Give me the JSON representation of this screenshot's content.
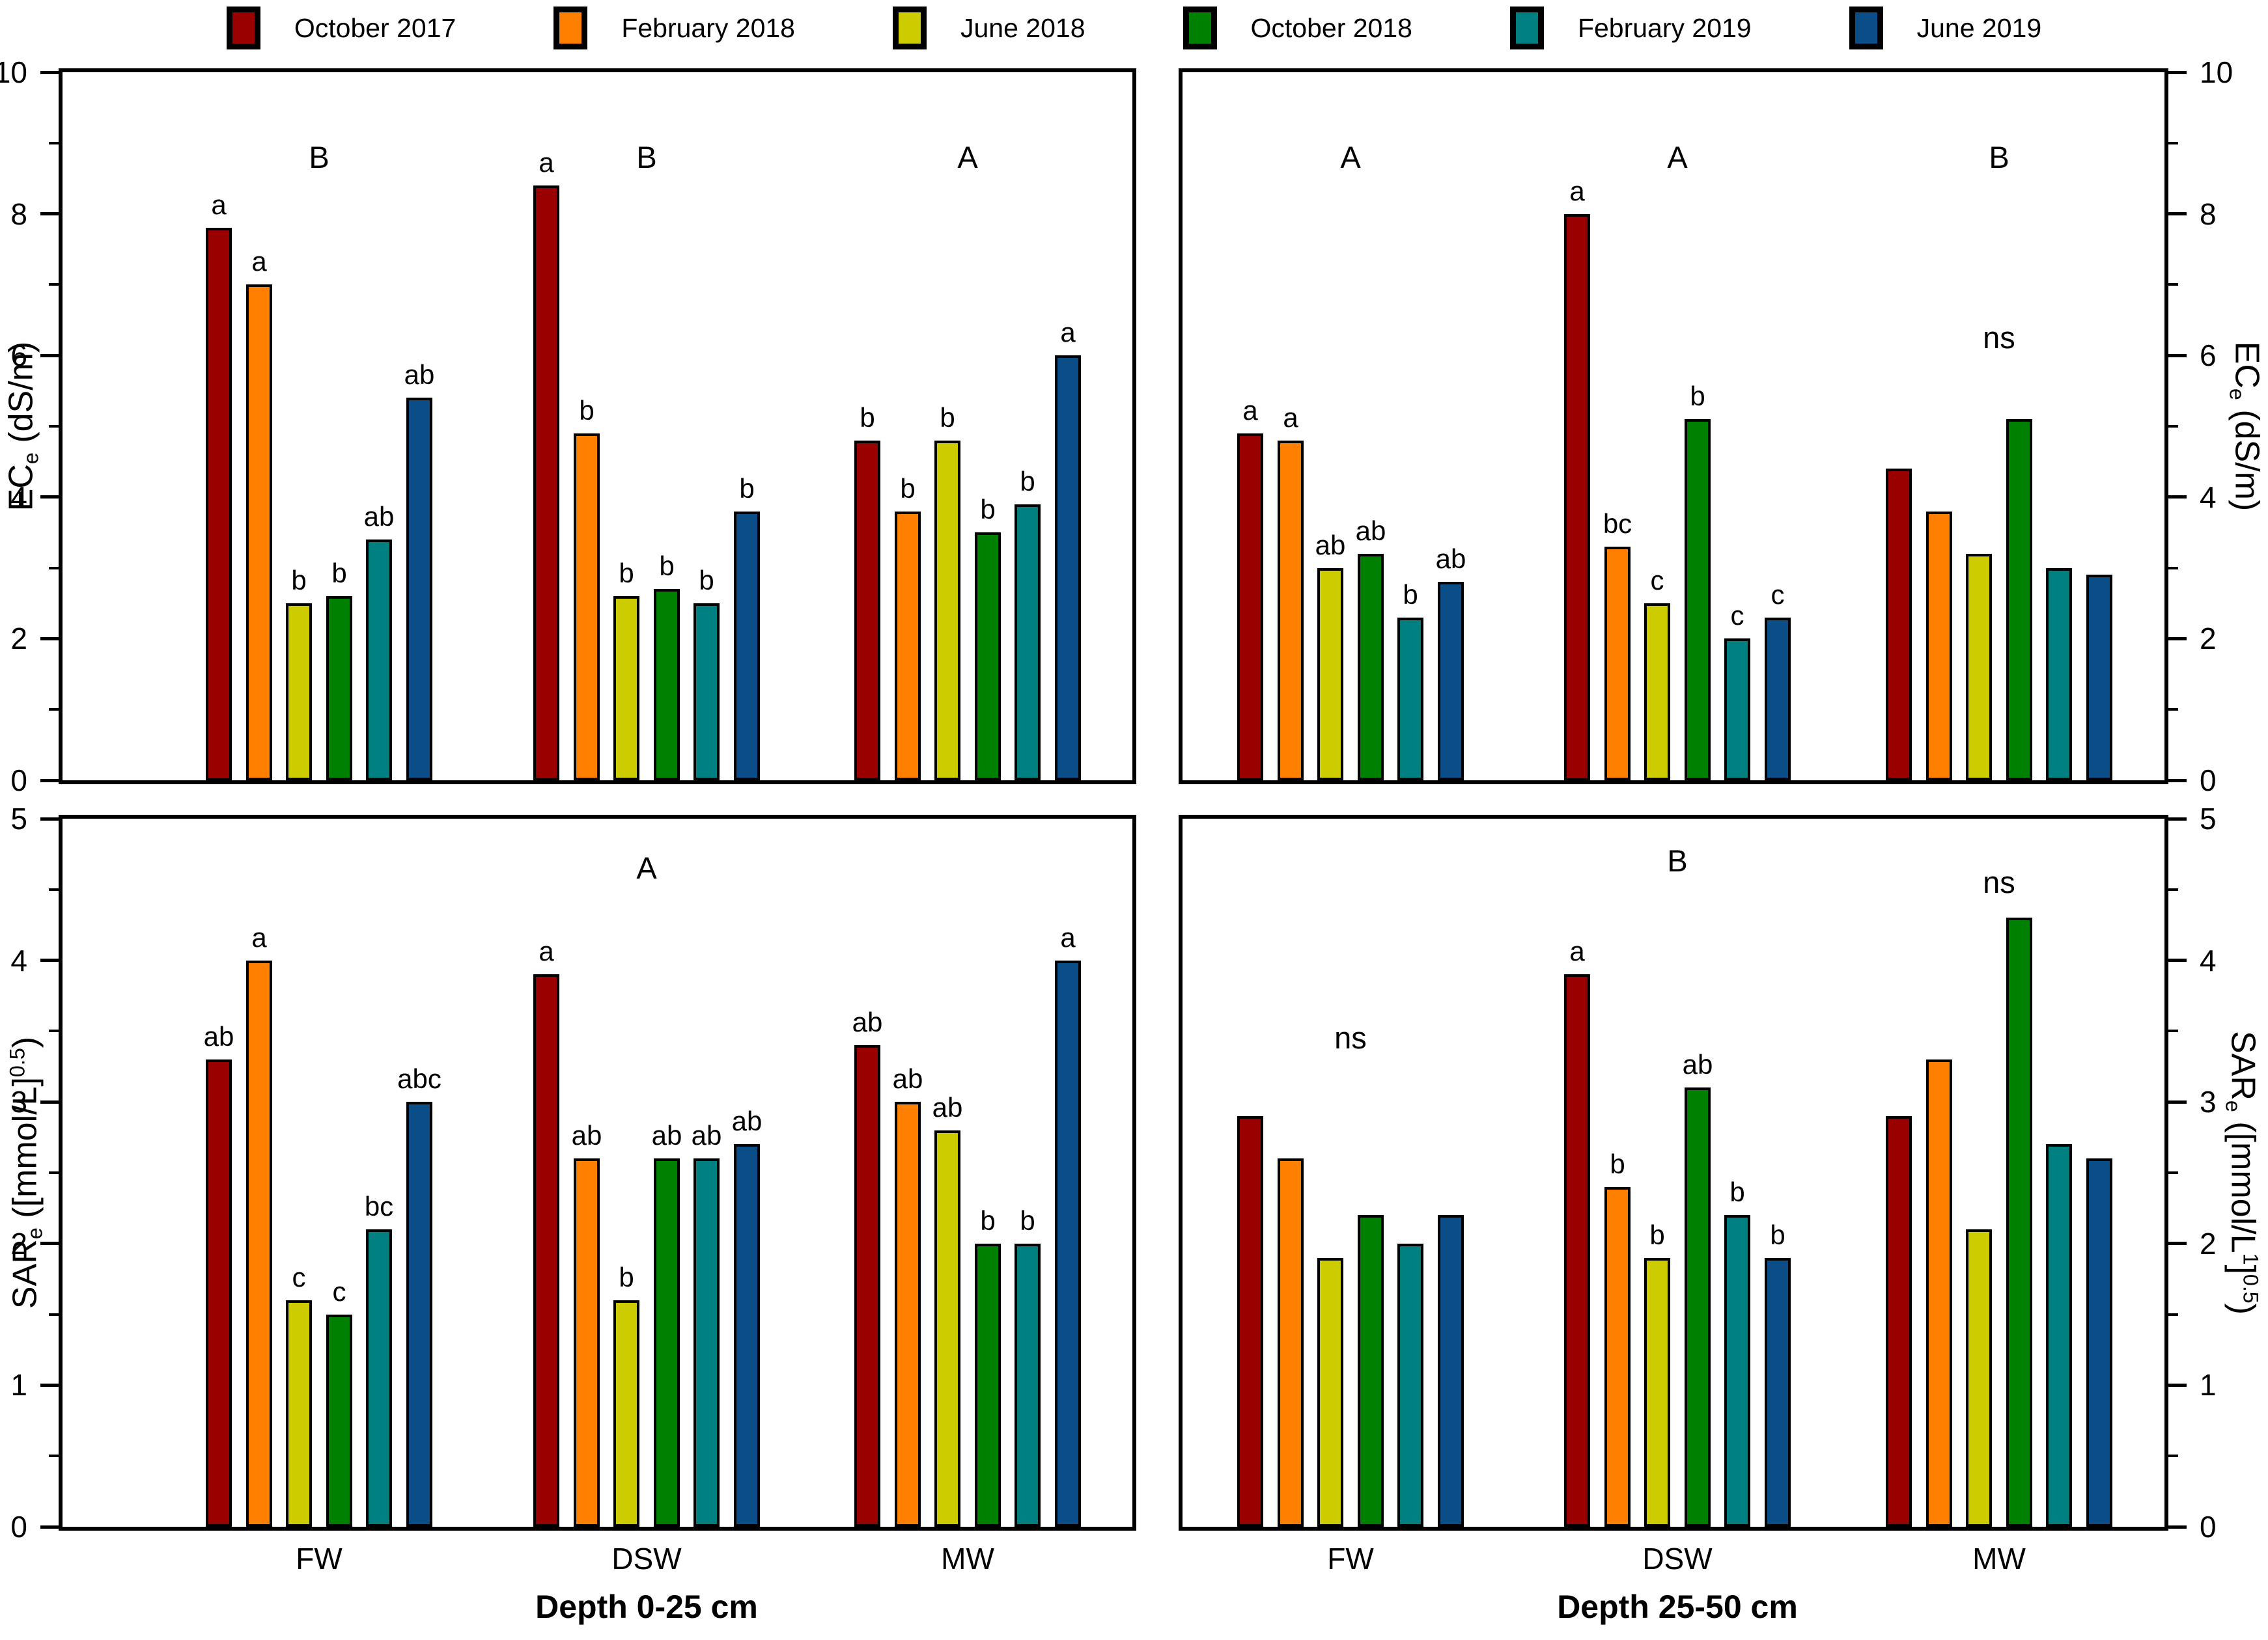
{
  "figure": {
    "background": "#ffffff",
    "depth_titles": {
      "left": "Depth 0-25 cm",
      "right": "Depth 25-50 cm"
    }
  },
  "legend": {
    "items": [
      {
        "label": "October 2017",
        "color": "#990000"
      },
      {
        "label": "February 2018",
        "color": "#FF8000"
      },
      {
        "label": "June 2018",
        "color": "#CCCC00"
      },
      {
        "label": "October 2018",
        "color": "#008000"
      },
      {
        "label": "February 2019",
        "color": "#008080"
      },
      {
        "label": "June 2019",
        "color": "#0A4D87"
      }
    ]
  },
  "chart_data": [
    {
      "type": "bar",
      "key": "ece-depth-0-25",
      "position": "top-left",
      "title": "ECe at depth 0-25 cm",
      "categories": [
        "FW",
        "DSW",
        "MW"
      ],
      "axis_side": "left",
      "ylabel_plain": "ECe (dS/m)",
      "ylabel_segments": [
        {
          "t": "EC"
        },
        {
          "t": "e",
          "s": "sub"
        },
        {
          "t": " (dS/m)"
        }
      ],
      "ylim": [
        0,
        10
      ],
      "yticks": [
        0,
        2,
        4,
        6,
        8,
        10
      ],
      "minor_yticks": [
        1,
        3,
        5,
        7,
        9
      ],
      "show_category_labels": false,
      "grid": false,
      "series": [
        {
          "name": "October 2017",
          "values": [
            7.8,
            8.4,
            4.8
          ],
          "letters": [
            "a",
            "a",
            "b"
          ]
        },
        {
          "name": "February 2018",
          "values": [
            7.0,
            4.9,
            3.8
          ],
          "letters": [
            "a",
            "b",
            "b"
          ]
        },
        {
          "name": "June 2018",
          "values": [
            2.5,
            2.6,
            4.8
          ],
          "letters": [
            "b",
            "b",
            "b"
          ]
        },
        {
          "name": "October 2018",
          "values": [
            2.6,
            2.7,
            3.5
          ],
          "letters": [
            "b",
            "b",
            "b"
          ]
        },
        {
          "name": "February 2019",
          "values": [
            3.4,
            2.5,
            3.9
          ],
          "letters": [
            "ab",
            "b",
            "b"
          ]
        },
        {
          "name": "June 2019",
          "values": [
            5.4,
            3.8,
            6.0
          ],
          "letters": [
            "ab",
            "b",
            "a"
          ]
        }
      ],
      "annotations": [
        {
          "group": 0,
          "text": "B",
          "y": 8.8
        },
        {
          "group": 1,
          "text": "B",
          "y": 8.8
        },
        {
          "group": 2,
          "text": "A",
          "y": 8.8
        }
      ]
    },
    {
      "type": "bar",
      "key": "ece-depth-25-50",
      "position": "top-right",
      "title": "ECe at depth 25-50 cm",
      "categories": [
        "FW",
        "DSW",
        "MW"
      ],
      "axis_side": "right",
      "ylabel_plain": "ECe (dS/m)",
      "ylabel_segments": [
        {
          "t": "EC"
        },
        {
          "t": "e",
          "s": "sub"
        },
        {
          "t": " (dS/m)"
        }
      ],
      "ylim": [
        0,
        10
      ],
      "yticks": [
        0,
        2,
        4,
        6,
        8,
        10
      ],
      "minor_yticks": [
        1,
        3,
        5,
        7,
        9
      ],
      "show_category_labels": false,
      "grid": false,
      "series": [
        {
          "name": "October 2017",
          "values": [
            4.9,
            8.0,
            4.4
          ],
          "letters": [
            "a",
            "a",
            ""
          ]
        },
        {
          "name": "February 2018",
          "values": [
            4.8,
            3.3,
            3.8
          ],
          "letters": [
            "a",
            "bc",
            ""
          ]
        },
        {
          "name": "June 2018",
          "values": [
            3.0,
            2.5,
            3.2
          ],
          "letters": [
            "ab",
            "c",
            ""
          ]
        },
        {
          "name": "October 2018",
          "values": [
            3.2,
            5.1,
            5.1
          ],
          "letters": [
            "ab",
            "b",
            ""
          ]
        },
        {
          "name": "February 2019",
          "values": [
            2.3,
            2.0,
            3.0
          ],
          "letters": [
            "b",
            "c",
            ""
          ]
        },
        {
          "name": "June 2019",
          "values": [
            2.8,
            2.3,
            2.9
          ],
          "letters": [
            "ab",
            "c",
            ""
          ]
        }
      ],
      "annotations": [
        {
          "group": 0,
          "text": "A",
          "y": 8.8
        },
        {
          "group": 1,
          "text": "A",
          "y": 8.8
        },
        {
          "group": 2,
          "text": "B",
          "y": 8.8
        },
        {
          "group": 2,
          "text": "ns",
          "y": 6.25
        }
      ]
    },
    {
      "type": "bar",
      "key": "sare-depth-0-25",
      "position": "bottom-left",
      "title": "SARe at depth 0-25 cm",
      "categories": [
        "FW",
        "DSW",
        "MW"
      ],
      "axis_side": "left",
      "ylabel_plain": "SARe ([mmol/L]0.5)",
      "ylabel_segments": [
        {
          "t": "SAR"
        },
        {
          "t": "e",
          "s": "sub"
        },
        {
          "t": " ([mmol/L]"
        },
        {
          "t": "0.5",
          "s": "sup"
        },
        {
          "t": ")"
        }
      ],
      "ylim": [
        0,
        5
      ],
      "yticks": [
        0,
        1,
        2,
        3,
        4,
        5
      ],
      "minor_yticks": [
        0.5,
        1.5,
        2.5,
        3.5,
        4.5
      ],
      "show_category_labels": true,
      "grid": false,
      "series": [
        {
          "name": "October 2017",
          "values": [
            3.3,
            3.9,
            3.4
          ],
          "letters": [
            "ab",
            "a",
            "ab"
          ]
        },
        {
          "name": "February 2018",
          "values": [
            4.0,
            2.6,
            3.0
          ],
          "letters": [
            "a",
            "ab",
            "ab"
          ]
        },
        {
          "name": "June 2018",
          "values": [
            1.6,
            1.6,
            2.8
          ],
          "letters": [
            "c",
            "b",
            "ab"
          ]
        },
        {
          "name": "October 2018",
          "values": [
            1.5,
            2.6,
            2.0
          ],
          "letters": [
            "c",
            "ab",
            "b"
          ]
        },
        {
          "name": "February 2019",
          "values": [
            2.1,
            2.6,
            2.0
          ],
          "letters": [
            "bc",
            "ab",
            "b"
          ]
        },
        {
          "name": "June 2019",
          "values": [
            3.0,
            2.7,
            4.0
          ],
          "letters": [
            "abc",
            "ab",
            "a"
          ]
        }
      ],
      "annotations": [
        {
          "group": 1,
          "text": "A",
          "y": 4.65
        }
      ]
    },
    {
      "type": "bar",
      "key": "sare-depth-25-50",
      "position": "bottom-right",
      "title": "SARe at depth 25-50 cm",
      "categories": [
        "FW",
        "DSW",
        "MW"
      ],
      "axis_side": "right",
      "ylabel_plain": "SARe ([mmol/L1]0.5)",
      "ylabel_segments": [
        {
          "t": "SAR"
        },
        {
          "t": "e",
          "s": "sub"
        },
        {
          "t": " ([mmol/L"
        },
        {
          "t": "1",
          "s": "sup"
        },
        {
          "t": "]"
        },
        {
          "t": "0.5",
          "s": "sup"
        },
        {
          "t": ")"
        }
      ],
      "ylim": [
        0,
        5
      ],
      "yticks": [
        0,
        1,
        2,
        3,
        4,
        5
      ],
      "minor_yticks": [
        0.5,
        1.5,
        2.5,
        3.5,
        4.5
      ],
      "show_category_labels": true,
      "grid": false,
      "series": [
        {
          "name": "October 2017",
          "values": [
            2.9,
            3.9,
            2.9
          ],
          "letters": [
            "",
            "a",
            ""
          ]
        },
        {
          "name": "February 2018",
          "values": [
            2.6,
            2.4,
            3.3
          ],
          "letters": [
            "",
            "b",
            ""
          ]
        },
        {
          "name": "June 2018",
          "values": [
            1.9,
            1.9,
            2.1
          ],
          "letters": [
            "",
            "b",
            ""
          ]
        },
        {
          "name": "October 2018",
          "values": [
            2.2,
            3.1,
            4.3
          ],
          "letters": [
            "",
            "ab",
            ""
          ]
        },
        {
          "name": "February 2019",
          "values": [
            2.0,
            2.2,
            2.7
          ],
          "letters": [
            "",
            "b",
            ""
          ]
        },
        {
          "name": "June 2019",
          "values": [
            2.2,
            1.9,
            2.6
          ],
          "letters": [
            "",
            "b",
            ""
          ]
        }
      ],
      "annotations": [
        {
          "group": 1,
          "text": "B",
          "y": 4.7
        },
        {
          "group": 0,
          "text": "ns",
          "y": 3.45
        },
        {
          "group": 2,
          "text": "ns",
          "y": 4.55
        }
      ]
    }
  ]
}
